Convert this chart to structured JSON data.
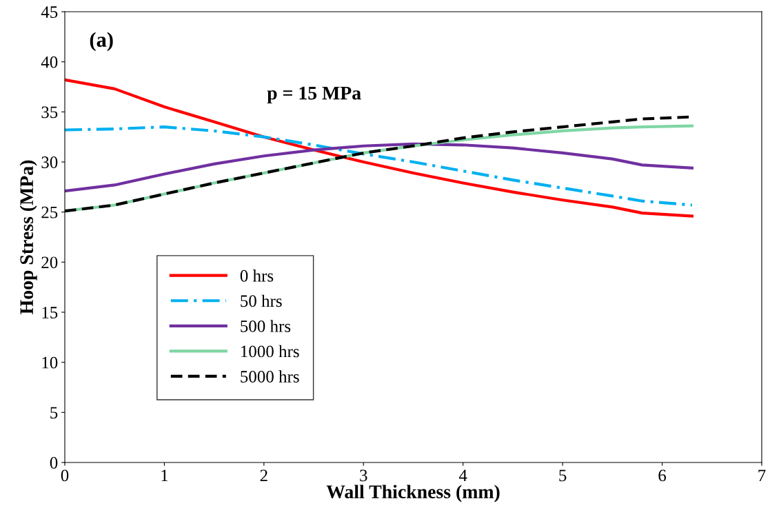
{
  "chart_data": {
    "type": "line",
    "xlabel": "Wall Thickness (mm)",
    "ylabel": "Hoop Stress (MPa)",
    "annotations": [
      "(a)",
      "p = 15 MPa"
    ],
    "xlim": [
      0,
      7
    ],
    "xticks": [
      0,
      1,
      2,
      3,
      4,
      5,
      6,
      7
    ],
    "ylim": [
      0,
      45
    ],
    "yticks": [
      0,
      5,
      10,
      15,
      20,
      25,
      30,
      35,
      40,
      45
    ],
    "grid": false,
    "legend": "bottom left",
    "marker": "none",
    "x": [
      0,
      0.5,
      1,
      1.5,
      2,
      2.5,
      3,
      3.5,
      4,
      4.5,
      5,
      5.5,
      5.8,
      6.3
    ],
    "series": [
      {
        "name": "0 hrs",
        "color": "#ff0000",
        "line_style": "solid",
        "values": [
          38.2,
          37.3,
          35.5,
          34.0,
          32.5,
          31.2,
          30.0,
          28.9,
          27.9,
          27.0,
          26.2,
          25.5,
          24.9,
          24.6
        ]
      },
      {
        "name": "50 hrs",
        "color": "#00b0f0",
        "line_style": "dashdot",
        "values": [
          33.2,
          33.3,
          33.5,
          33.1,
          32.5,
          31.7,
          30.8,
          30.0,
          29.1,
          28.2,
          27.4,
          26.6,
          26.1,
          25.7
        ]
      },
      {
        "name": "500 hrs",
        "color": "#7030a0",
        "line_style": "solid",
        "values": [
          27.1,
          27.7,
          28.8,
          29.8,
          30.6,
          31.2,
          31.6,
          31.8,
          31.7,
          31.4,
          30.9,
          30.3,
          29.7,
          29.4
        ]
      },
      {
        "name": "1000 hrs",
        "color": "#7fd6a4",
        "line_style": "solid",
        "values": [
          25.1,
          25.7,
          26.8,
          27.9,
          28.9,
          29.9,
          30.9,
          31.6,
          32.2,
          32.7,
          33.1,
          33.4,
          33.5,
          33.6
        ]
      },
      {
        "name": "5000 hrs",
        "color": "#000000",
        "line_style": "dashed",
        "values": [
          25.1,
          25.7,
          26.8,
          27.9,
          28.9,
          29.9,
          30.9,
          31.6,
          32.4,
          33.0,
          33.5,
          34.0,
          34.3,
          34.5
        ]
      }
    ]
  }
}
